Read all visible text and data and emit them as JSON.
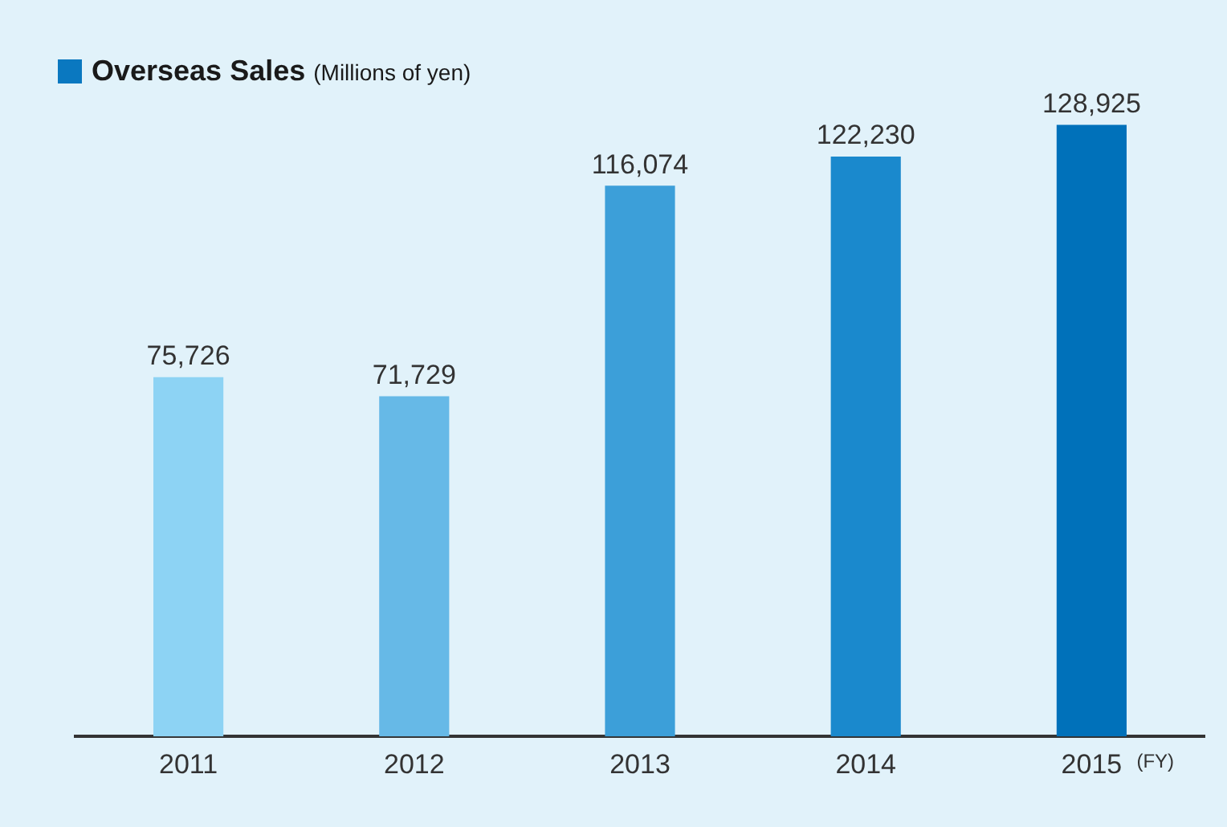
{
  "chart_data": {
    "type": "bar",
    "title": "Overseas Sales",
    "subtitle": "(Millions of yen)",
    "xlabel": "(FY)",
    "categories": [
      "2011",
      "2012",
      "2013",
      "2014",
      "2015"
    ],
    "values": [
      75726,
      71729,
      116074,
      122230,
      128925
    ],
    "colors": [
      "#8dd3f4",
      "#66b9e7",
      "#3c9fd9",
      "#1a89cd",
      "#0071ba"
    ],
    "value_labels": [
      "75,726",
      "71,729",
      "116,074",
      "122,230",
      "128,925"
    ],
    "grid": false,
    "legend": false
  }
}
